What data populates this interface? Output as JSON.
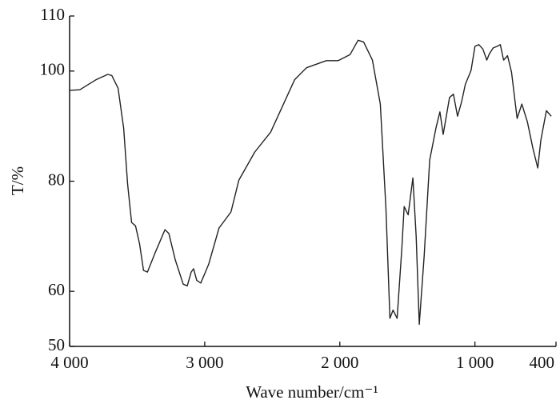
{
  "chart_data": {
    "type": "line",
    "xlabel": "Wave number/cm⁻¹",
    "ylabel": "T/%",
    "x": [
      4000,
      3924,
      3806,
      3718,
      3688,
      3641,
      3600,
      3571,
      3541,
      3512,
      3482,
      3453,
      3424,
      3365,
      3294,
      3265,
      3218,
      3159,
      3129,
      3100,
      3082,
      3059,
      3029,
      2971,
      2894,
      2806,
      2747,
      2629,
      2512,
      2335,
      2247,
      2100,
      2012,
      1924,
      1865,
      1824,
      1759,
      1700,
      1659,
      1629,
      1606,
      1576,
      1541,
      1524,
      1494,
      1459,
      1435,
      1412,
      1376,
      1335,
      1288,
      1259,
      1235,
      1188,
      1159,
      1129,
      1100,
      1071,
      1029,
      1000,
      971,
      941,
      912,
      894,
      865,
      835,
      812,
      788,
      759,
      729,
      688,
      653,
      612,
      571,
      535,
      512,
      471,
      435
    ],
    "series": [
      {
        "color": "#222222",
        "values": [
          96.5,
          96.6,
          98.4,
          99.4,
          99.2,
          96.9,
          89.6,
          79.5,
          72.5,
          71.9,
          68.6,
          63.8,
          63.5,
          67.1,
          71.2,
          70.5,
          65.7,
          61.3,
          61.0,
          63.5,
          64.1,
          62.0,
          61.5,
          64.9,
          71.5,
          74.4,
          80.2,
          85.3,
          88.9,
          98.4,
          100.6,
          101.9,
          101.9,
          103.0,
          105.6,
          105.3,
          102.0,
          94.0,
          75.1,
          55.1,
          56.6,
          55.1,
          67.8,
          75.4,
          73.9,
          80.6,
          70.0,
          54.0,
          66.4,
          83.8,
          89.7,
          92.6,
          88.5,
          95.2,
          95.8,
          91.8,
          94.3,
          97.6,
          100.1,
          104.5,
          104.8,
          104.0,
          102.0,
          103.1,
          104.2,
          104.5,
          104.8,
          102.0,
          102.8,
          99.8,
          91.4,
          94.0,
          90.8,
          86.0,
          82.4,
          87.5,
          92.8,
          91.8
        ]
      }
    ],
    "xlim": [
      4000,
      400
    ],
    "xticks": [
      {
        "value": 4000,
        "label": "4 000"
      },
      {
        "value": 3000,
        "label": "3 000"
      },
      {
        "value": 2000,
        "label": "2 000"
      },
      {
        "value": 1000,
        "label": "1 000"
      },
      400
    ],
    "ylim": [
      50,
      110
    ],
    "yticks": [
      50,
      60,
      80,
      100,
      110
    ]
  }
}
